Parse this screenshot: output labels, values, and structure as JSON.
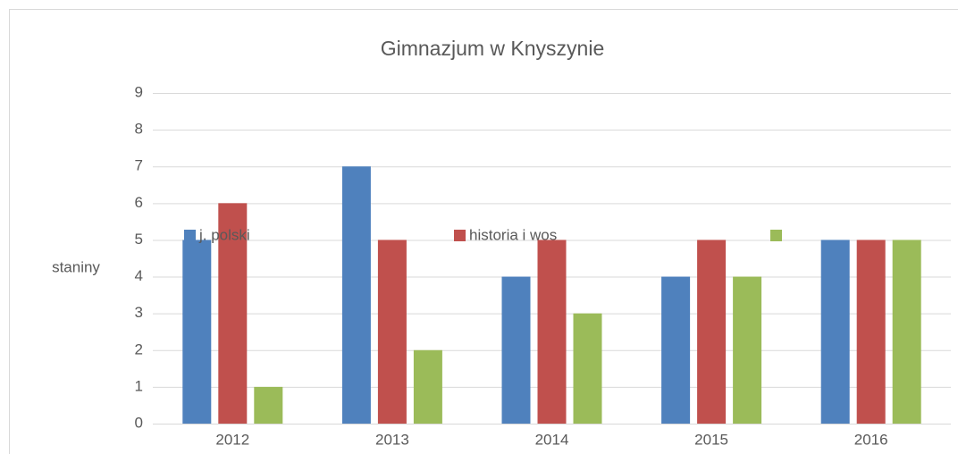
{
  "chart_data": {
    "type": "bar",
    "title": "Gimnazjum w Knyszynie",
    "y_label": "staniny",
    "categories": [
      "2012",
      "2013",
      "2014",
      "2015",
      "2016"
    ],
    "series": [
      {
        "name": "j. polski",
        "color": "#4f81bd",
        "values": [
          5,
          7,
          4,
          4,
          5
        ]
      },
      {
        "name": "historia i wos",
        "color": "#c0504d",
        "values": [
          6,
          5,
          5,
          5,
          5
        ]
      },
      {
        "color": "#9bbb59",
        "values": [
          1,
          2,
          3,
          4,
          5
        ]
      }
    ],
    "ylim": [
      0,
      9
    ],
    "yticks": [
      0,
      1,
      2,
      3,
      4,
      5,
      6,
      7,
      8,
      9
    ],
    "grid": true
  }
}
